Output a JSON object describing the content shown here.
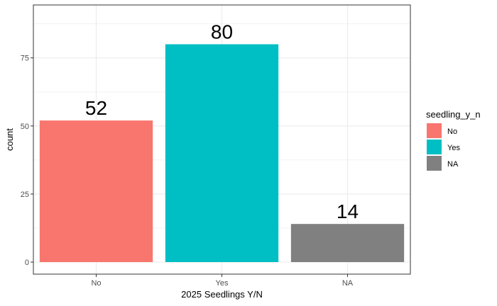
{
  "chart_data": {
    "type": "bar",
    "categories": [
      "No",
      "Yes",
      "NA"
    ],
    "values": [
      52,
      80,
      14
    ],
    "data_labels": [
      "52",
      "80",
      "14"
    ],
    "xlabel": "2025 Seedlings Y/N",
    "ylabel": "count",
    "ylim": [
      0,
      84
    ],
    "yticks": [
      0,
      25,
      50,
      75
    ],
    "ytick_labels": [
      "0",
      "25",
      "50",
      "75"
    ],
    "grid": true,
    "legend": {
      "title": "seedling_y_n",
      "placement": "right",
      "entries": [
        {
          "label": "No",
          "color": "#F8766D"
        },
        {
          "label": "Yes",
          "color": "#00BFC4"
        },
        {
          "label": "NA",
          "color": "#808080"
        }
      ]
    },
    "colors": [
      "#F8766D",
      "#00BFC4",
      "#808080"
    ]
  }
}
